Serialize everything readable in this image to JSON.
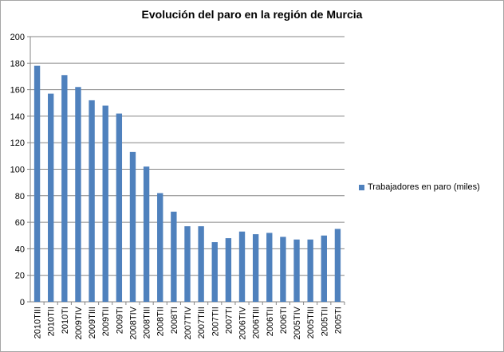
{
  "chart_data": {
    "type": "bar",
    "title": "Evolución del paro en la región de Murcia",
    "xlabel": "",
    "ylabel": "",
    "ylim": [
      0,
      200
    ],
    "yticks": [
      0,
      20,
      40,
      60,
      80,
      100,
      120,
      140,
      160,
      180,
      200
    ],
    "grid": true,
    "legend_position": "right",
    "categories": [
      "2010TIII",
      "2010TII",
      "2010TI",
      "2009TIV",
      "2009TIII",
      "2009TII",
      "2009TI",
      "2008TIV",
      "2008TIII",
      "2008TII",
      "2008TI",
      "2007TIV",
      "2007TIII",
      "2007TII",
      "2007TI",
      "2006TIV",
      "2006TIII",
      "2006TII",
      "2006TI",
      "2005TIV",
      "2005TIII",
      "2005TII",
      "2005TI"
    ],
    "series": [
      {
        "name": "Trabajadores en paro (miles)",
        "color": "#4f81bd",
        "values": [
          178,
          157,
          171,
          162,
          152,
          148,
          142,
          113,
          102,
          82,
          68,
          57,
          57,
          45,
          48,
          53,
          51,
          52,
          49,
          47,
          47,
          50,
          55
        ]
      }
    ]
  }
}
